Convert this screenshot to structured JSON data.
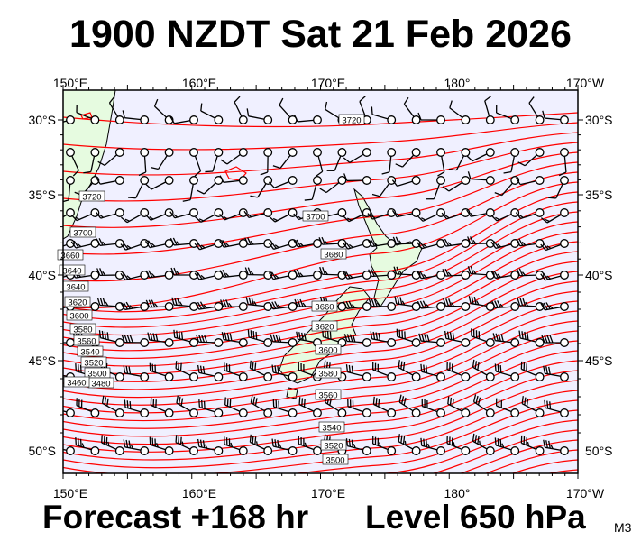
{
  "header": {
    "title": "1900 NZDT Sat 21 Feb 2026"
  },
  "footer": {
    "forecast": "Forecast +168 hr",
    "level": "Level 650 hPa",
    "model": "M3"
  },
  "map": {
    "lon_labels": [
      "150°E",
      "160°E",
      "170°E",
      "180°",
      "170°W"
    ],
    "lat_labels": [
      "30°S",
      "35°S",
      "40°S",
      "45°S",
      "50°S"
    ],
    "contour_labels": [
      "3720",
      "3720",
      "3700",
      "3700",
      "3680",
      "3660",
      "3640",
      "3640",
      "3620",
      "3600",
      "3580",
      "3560",
      "3540",
      "3520",
      "3500",
      "3480",
      "3460",
      "3660",
      "3620",
      "3600",
      "3580",
      "3560",
      "3540",
      "3520",
      "3500"
    ],
    "colors": {
      "ocean": "#f0f0ff",
      "land": "#e6fbe0",
      "contour": "#ff0000",
      "barb": "#000000"
    },
    "wind_rows": [
      {
        "lat": "30S",
        "speed_kt": 10,
        "dir_deg": 300
      },
      {
        "lat": "32S",
        "speed_kt": 10,
        "dir_deg": 200
      },
      {
        "lat": "34S",
        "speed_kt": 10,
        "dir_deg": 230
      },
      {
        "lat": "36S",
        "speed_kt": 15,
        "dir_deg": 250
      },
      {
        "lat": "38S",
        "speed_kt": 25,
        "dir_deg": 260
      },
      {
        "lat": "40S",
        "speed_kt": 25,
        "dir_deg": 265
      },
      {
        "lat": "42S",
        "speed_kt": 35,
        "dir_deg": 270
      },
      {
        "lat": "44S",
        "speed_kt": 40,
        "dir_deg": 280
      },
      {
        "lat": "46S",
        "speed_kt": 30,
        "dir_deg": 290
      },
      {
        "lat": "48S",
        "speed_kt": 30,
        "dir_deg": 295
      },
      {
        "lat": "50S",
        "speed_kt": 35,
        "dir_deg": 290
      }
    ]
  }
}
